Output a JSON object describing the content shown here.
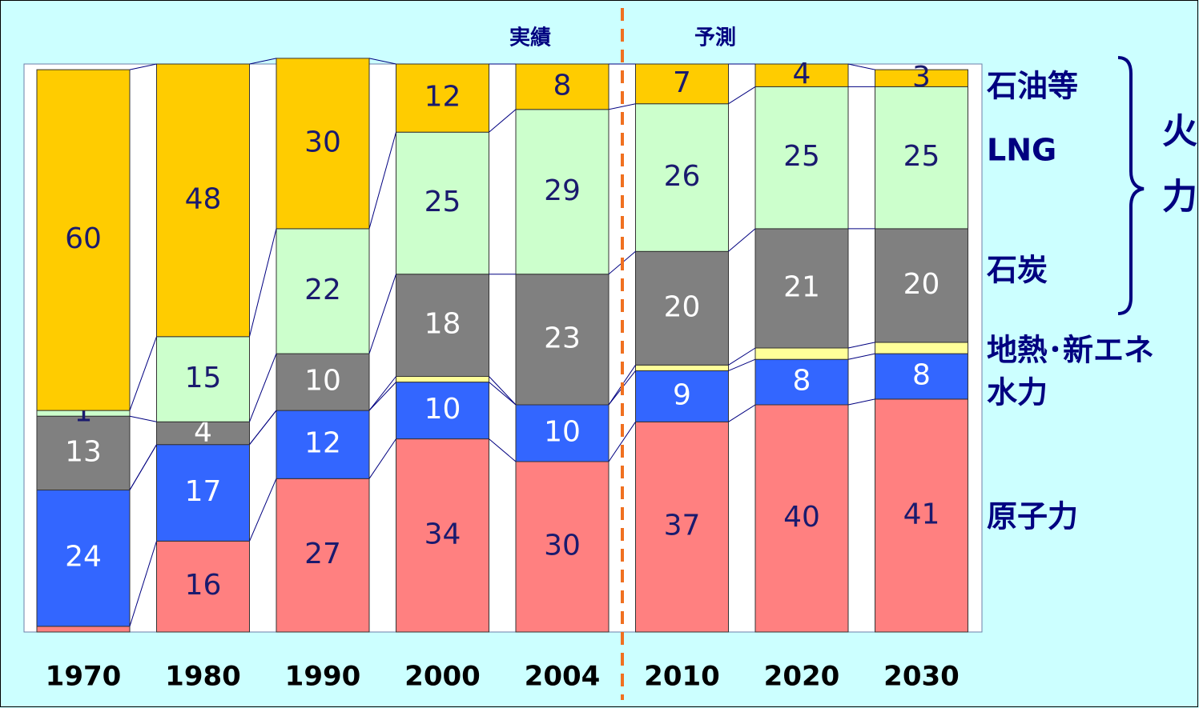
{
  "chart_data": {
    "type": "stacked_bar",
    "categories": [
      "1970",
      "1980",
      "1990",
      "2000",
      "2004",
      "2010",
      "2020",
      "2030"
    ],
    "series": [
      {
        "name": "原子力",
        "color": "#ff8080",
        "label_color": "#1a1a6e",
        "values": [
          1,
          16,
          27,
          34,
          30,
          37,
          40,
          41
        ],
        "value_labels": [
          null,
          "16",
          "27",
          "34",
          "30",
          "37",
          "40",
          "41"
        ]
      },
      {
        "name": "水力",
        "color": "#3366ff",
        "label_color": "#ffffff",
        "values": [
          24,
          17,
          12,
          10,
          10,
          9,
          8,
          8
        ],
        "value_labels": [
          "24",
          "17",
          "12",
          "10",
          "10",
          "9",
          "8",
          "8"
        ]
      },
      {
        "name": "地熱･新エネ",
        "color": "#ffff99",
        "label_color": "#1a1a6e",
        "values": [
          0,
          0,
          0,
          1,
          0,
          1,
          2,
          2
        ],
        "value_labels": [
          null,
          null,
          null,
          null,
          null,
          null,
          null,
          null
        ]
      },
      {
        "name": "石炭",
        "color": "#808080",
        "label_color": "#ffffff",
        "values": [
          13,
          4,
          10,
          18,
          23,
          20,
          21,
          20
        ],
        "value_labels": [
          "13",
          "4",
          "10",
          "18",
          "23",
          "20",
          "21",
          "20"
        ]
      },
      {
        "name": "LNG",
        "color": "#ccffcc",
        "label_color": "#1a1a6e",
        "values": [
          1,
          15,
          22,
          25,
          29,
          26,
          25,
          25
        ],
        "value_labels": [
          "1",
          "15",
          "22",
          "25",
          "29",
          "26",
          "25",
          "25"
        ]
      },
      {
        "name": "石油等",
        "color": "#ffcc00",
        "label_color": "#1a1a6e",
        "values": [
          60,
          48,
          30,
          12,
          8,
          7,
          4,
          3
        ],
        "value_labels": [
          "60",
          "48",
          "30",
          "12",
          "8",
          "7",
          "4",
          "3"
        ]
      }
    ],
    "ylim": [
      0,
      100
    ],
    "phases": [
      "実績",
      "予測"
    ],
    "group_label": "火力"
  }
}
